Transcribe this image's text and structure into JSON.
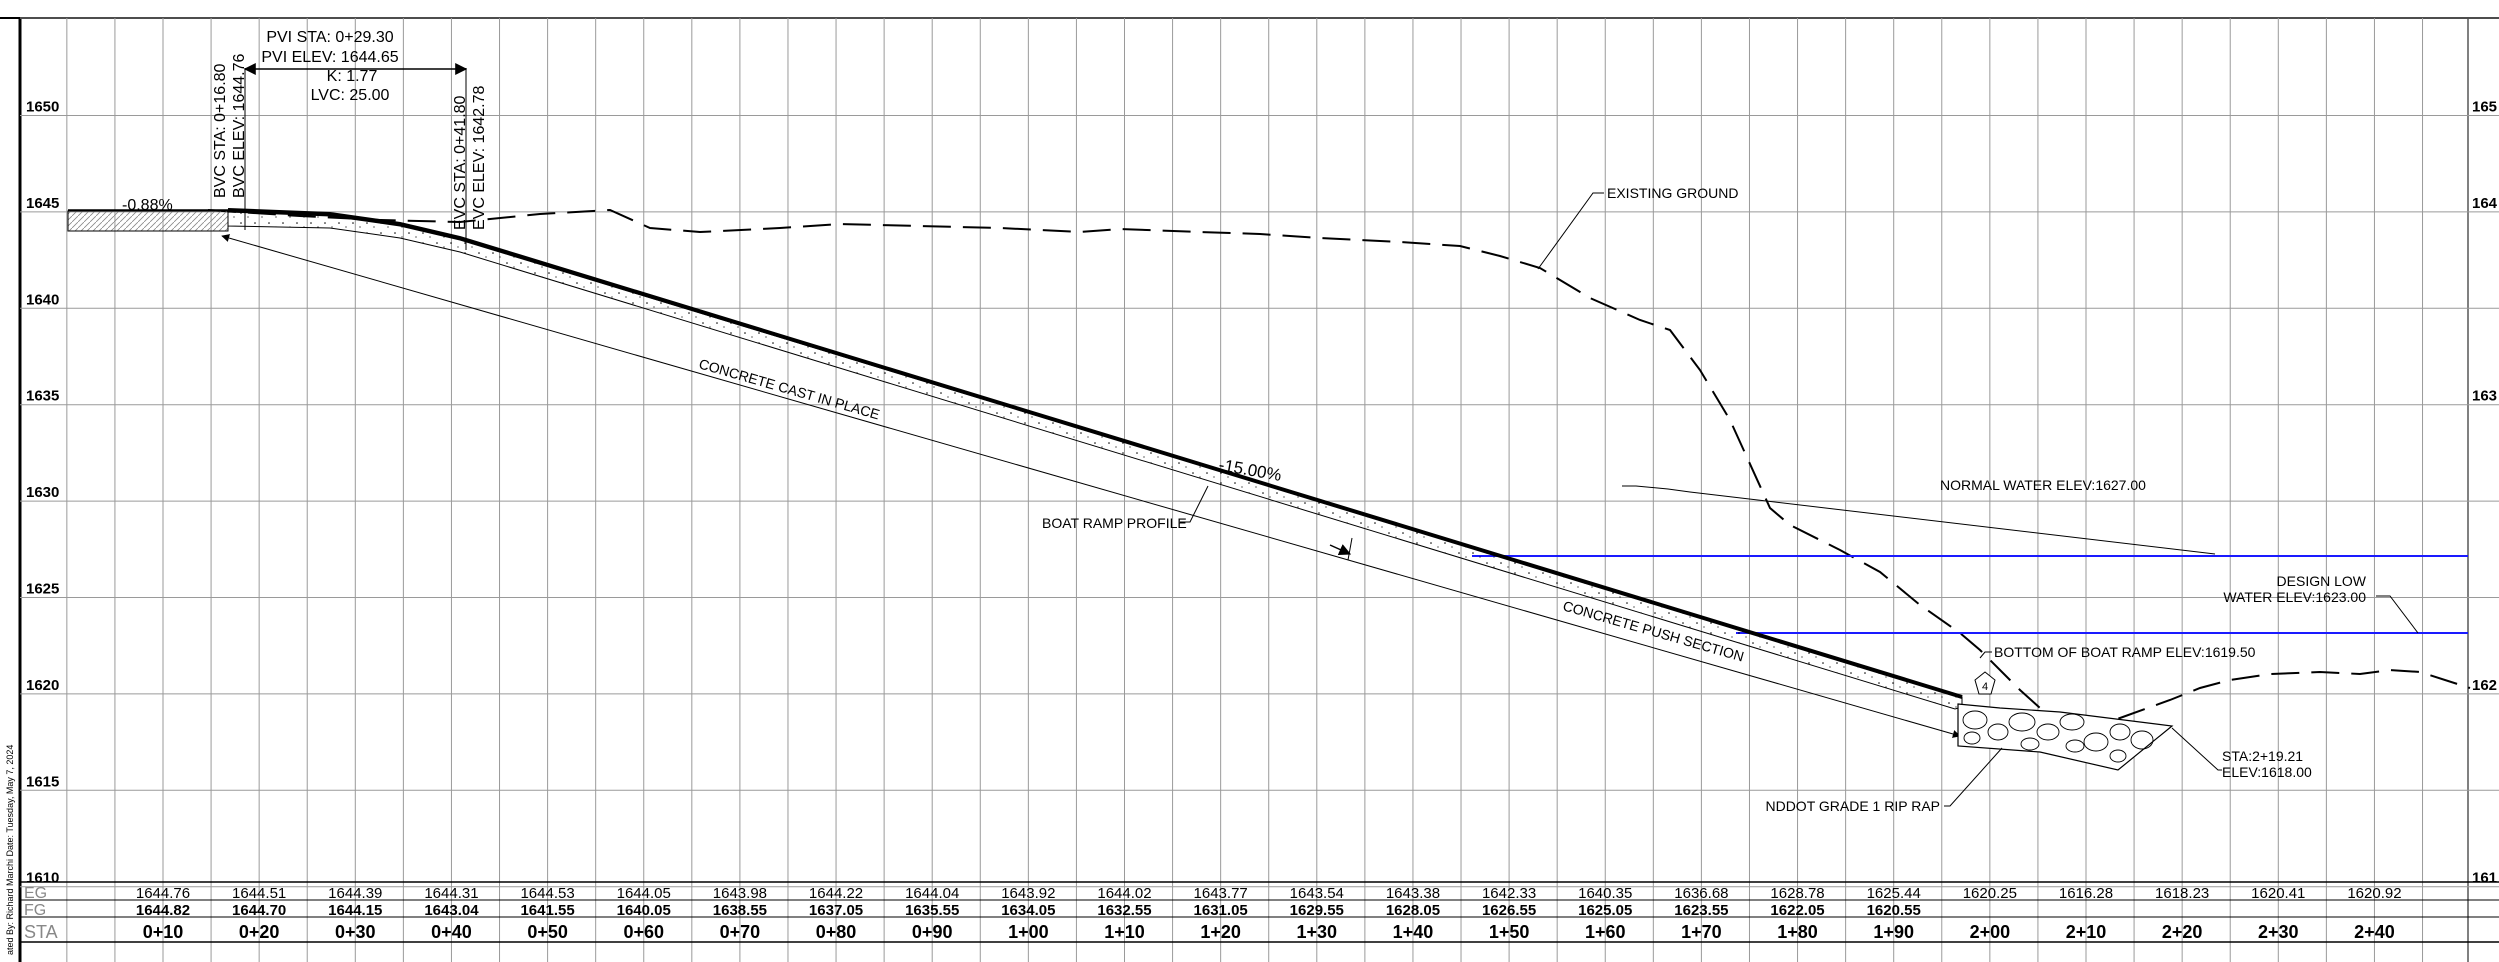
{
  "elev_labels": [
    "1650",
    "1645",
    "1640",
    "1635",
    "1630",
    "1625",
    "1620",
    "1615",
    "1610"
  ],
  "elev_labels_right": [
    "165",
    "164",
    "163",
    "162",
    "161"
  ],
  "row_labels": {
    "eg": "EG",
    "fg": "FG",
    "sta": "STA"
  },
  "sidebar_text": "ated By: Richard Marchi   Date: Tuesday, May 7, 2024",
  "pvi": {
    "sta": "PVI STA: 0+29.30",
    "elev": "PVI ELEV: 1644.65",
    "k": "K: 1.77",
    "lvc": "LVC: 25.00"
  },
  "bvc": {
    "sta": "BVC STA: 0+16.80",
    "elev": "BVC ELEV: 1644.76"
  },
  "evc": {
    "sta": "EVC STA: 0+41.80",
    "elev": "EVC ELEV: 1642.78"
  },
  "grade_start": "-0.88%",
  "grade_main": "-15.00%",
  "callouts": {
    "existing_ground": "EXISTING GROUND",
    "concrete_cast": "CONCRETE CAST IN PLACE",
    "boat_ramp_profile": "BOAT RAMP PROFILE",
    "concrete_push": "CONCRETE PUSH SECTION",
    "normal_water": "NORMAL WATER ELEV:1627.00",
    "design_low_1": "DESIGN LOW",
    "design_low_2": "WATER ELEV:1623.00",
    "bottom_ramp": "BOTTOM OF BOAT RAMP ELEV:1619.50",
    "marker": "4",
    "sta_end": "STA:2+19.21",
    "elev_end": "ELEV:1618.00",
    "rip_rap": "NDDOT GRADE 1 RIP RAP"
  },
  "stations": [
    "0+10",
    "0+20",
    "0+30",
    "0+40",
    "0+50",
    "0+60",
    "0+70",
    "0+80",
    "0+90",
    "1+00",
    "1+10",
    "1+20",
    "1+30",
    "1+40",
    "1+50",
    "1+60",
    "1+70",
    "1+80",
    "1+90",
    "2+00",
    "2+10",
    "2+20",
    "2+30",
    "2+40"
  ],
  "eg_values": [
    "1644.76",
    "1644.51",
    "1644.39",
    "1644.31",
    "1644.53",
    "1644.05",
    "1643.98",
    "1644.22",
    "1644.04",
    "1643.92",
    "1644.02",
    "1643.77",
    "1643.54",
    "1643.38",
    "1642.33",
    "1640.35",
    "1636.68",
    "1628.78",
    "1625.44",
    "1620.25",
    "1616.28",
    "1618.23",
    "1620.41",
    "1620.92"
  ],
  "fg_values": [
    "1644.82",
    "1644.70",
    "1644.15",
    "1643.04",
    "1641.55",
    "1640.05",
    "1638.55",
    "1637.05",
    "1635.55",
    "1634.05",
    "1632.55",
    "1631.05",
    "1629.55",
    "1628.05",
    "1626.55",
    "1625.05",
    "1623.55",
    "1622.05",
    "1620.55"
  ],
  "colors": {
    "water": "#1a1aff",
    "line": "#000000",
    "grid": "#9a9a9a"
  }
}
